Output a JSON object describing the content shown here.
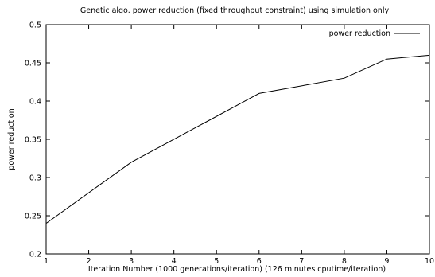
{
  "chart_data": {
    "type": "line",
    "title": "Genetic algo. power reduction (fixed throughput constraint) using simulation only",
    "xlabel": "Iteration Number (1000 generations/iteration) (126 minutes cputime/iteration)",
    "ylabel": "power reduction",
    "xlim": [
      1,
      10
    ],
    "ylim": [
      0.2,
      0.5
    ],
    "x_ticks": [
      1,
      2,
      3,
      4,
      5,
      6,
      7,
      8,
      9,
      10
    ],
    "y_ticks": [
      0.2,
      0.25,
      0.3,
      0.35,
      0.4,
      0.45,
      0.5
    ],
    "grid": false,
    "legend_position": "top-right",
    "series": [
      {
        "name": "power reduction",
        "color": "#000000",
        "x": [
          1,
          3,
          6,
          8,
          9,
          10
        ],
        "y": [
          0.24,
          0.32,
          0.41,
          0.43,
          0.455,
          0.46
        ]
      }
    ]
  }
}
